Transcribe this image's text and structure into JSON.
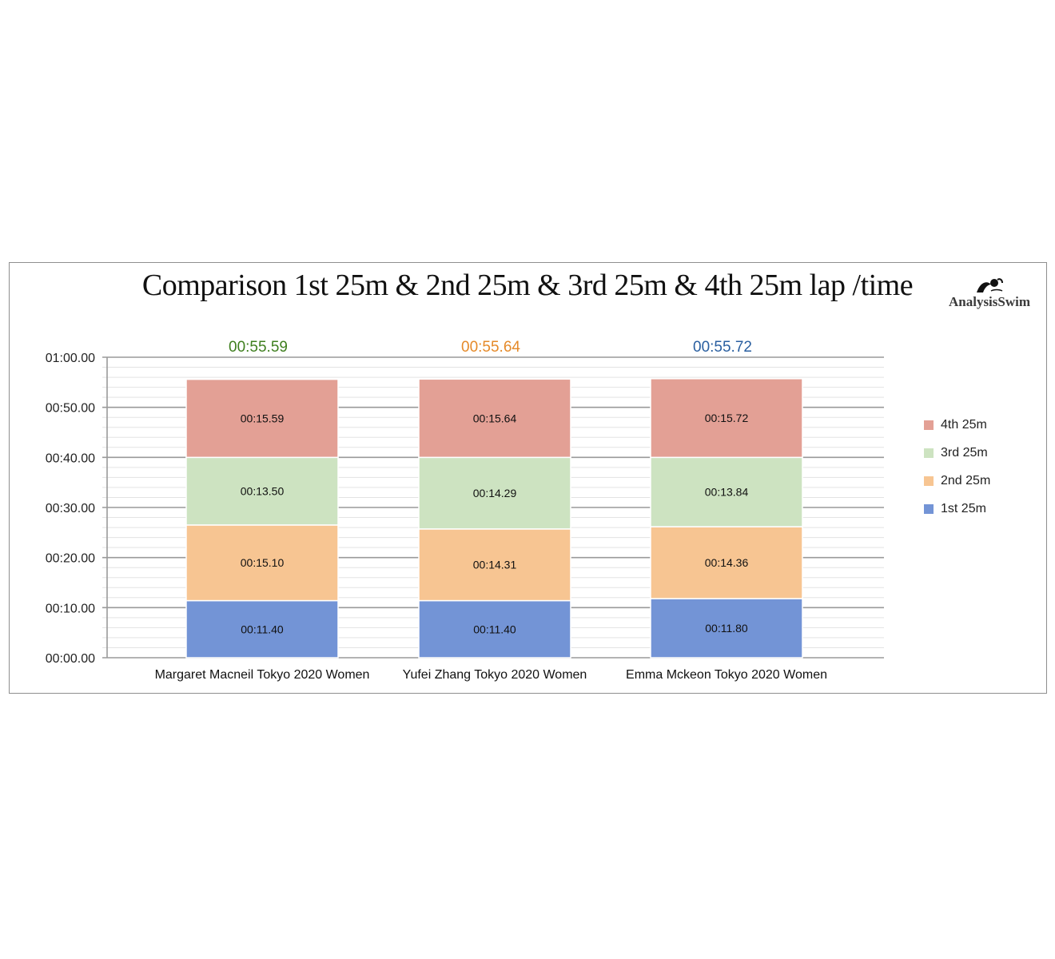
{
  "logo": {
    "text": "AnalysisSwim"
  },
  "chart_data": {
    "type": "bar",
    "stacked": true,
    "title": "Comparison 1st 25m & 2nd 25m & 3rd 25m & 4th 25m lap /time",
    "xlabel": "",
    "ylabel": "",
    "categories": [
      "Margaret Macneil Tokyo 2020 Women",
      "Yufei Zhang Tokyo 2020 Women",
      "Emma Mckeon Tokyo 2020 Women"
    ],
    "totals": [
      {
        "label": "00:55.59",
        "color": "#3f7f1f"
      },
      {
        "label": "00:55.64",
        "color": "#e58a2a"
      },
      {
        "label": "00:55.72",
        "color": "#2a5fa0"
      }
    ],
    "series": [
      {
        "name": "1st 25m",
        "color": "#7394d6",
        "values": [
          11.4,
          11.4,
          11.8
        ],
        "labels": [
          "00:11.40",
          "00:11.40",
          "00:11.80"
        ]
      },
      {
        "name": "2nd 25m",
        "color": "#f7c592",
        "values": [
          15.1,
          14.31,
          14.36
        ],
        "labels": [
          "00:15.10",
          "00:14.31",
          "00:14.36"
        ]
      },
      {
        "name": "3rd 25m",
        "color": "#cde3c1",
        "values": [
          13.5,
          14.29,
          13.84
        ],
        "labels": [
          "00:13.50",
          "00:14.29",
          "00:13.84"
        ]
      },
      {
        "name": "4th 25m",
        "color": "#e3a095",
        "values": [
          15.59,
          15.64,
          15.72
        ],
        "labels": [
          "00:15.59",
          "00:15.64",
          "00:15.72"
        ]
      }
    ],
    "yticks": [
      "00:00.00",
      "00:10.00",
      "00:20.00",
      "00:30.00",
      "00:40.00",
      "00:50.00",
      "01:00.00"
    ],
    "ylim": [
      0,
      60
    ],
    "grid": true,
    "legend_position": "right"
  }
}
